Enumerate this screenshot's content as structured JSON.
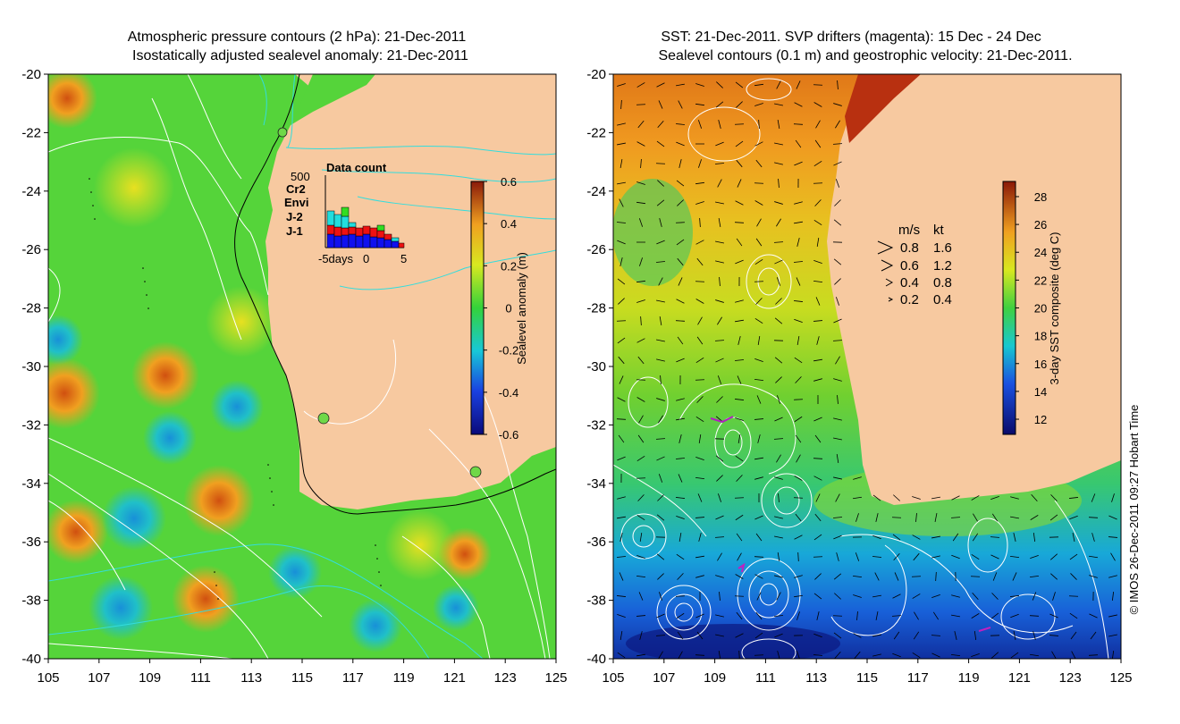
{
  "left_panel": {
    "title_line1": "Atmospheric pressure contours (2 hPa): 21-Dec-2011",
    "title_line2": "Isostatically adjusted sealevel anomaly: 21-Dec-2011",
    "colorbar_label": "Sealevel anomaly (m)",
    "colorbar_ticks": [
      "0.6",
      "0.4",
      "0.2",
      "0",
      "-0.2",
      "-0.4",
      "-0.6"
    ],
    "inset": {
      "title": "Data count",
      "y_max_label": "500",
      "x_labels": [
        "-5days",
        "0",
        "5"
      ],
      "missions": [
        {
          "name": "Cr2",
          "color": "#33dd22"
        },
        {
          "name": "Envi",
          "color": "#22dddd"
        },
        {
          "name": "J-2",
          "color": "#ee1111"
        },
        {
          "name": "J-1",
          "color": "#1111ee"
        }
      ]
    }
  },
  "right_panel": {
    "title_line1": "SST: 21-Dec-2011. SVP drifters (magenta): 15 Dec - 24 Dec",
    "title_line2": "Sealevel contours (0.1 m) and geostrophic velocity: 21-Dec-2011.",
    "colorbar_label": "3-day SST composite (deg C)",
    "colorbar_ticks": [
      "28",
      "26",
      "24",
      "22",
      "20",
      "18",
      "16",
      "14",
      "12"
    ],
    "velocity_legend": {
      "header_ms": "m/s",
      "header_kt": "kt",
      "rows": [
        {
          "ms": "0.8",
          "kt": "1.6"
        },
        {
          "ms": "0.6",
          "kt": "1.2"
        },
        {
          "ms": "0.4",
          "kt": "0.8"
        },
        {
          "ms": "0.2",
          "kt": "0.4"
        }
      ]
    }
  },
  "axes": {
    "y_ticks": [
      "-20",
      "-22",
      "-24",
      "-26",
      "-28",
      "-30",
      "-32",
      "-34",
      "-36",
      "-38",
      "-40"
    ],
    "x_ticks": [
      "105",
      "107",
      "109",
      "111",
      "113",
      "115",
      "117",
      "119",
      "121",
      "123",
      "125"
    ]
  },
  "credit": "© IMOS 26-Dec-2011 09:27 Hobart Time",
  "colors": {
    "land": "#f7c9a0",
    "ocean_mid": "#55d43a",
    "contour_white": "#ffffff",
    "contour_cyan": "#33dddd"
  }
}
